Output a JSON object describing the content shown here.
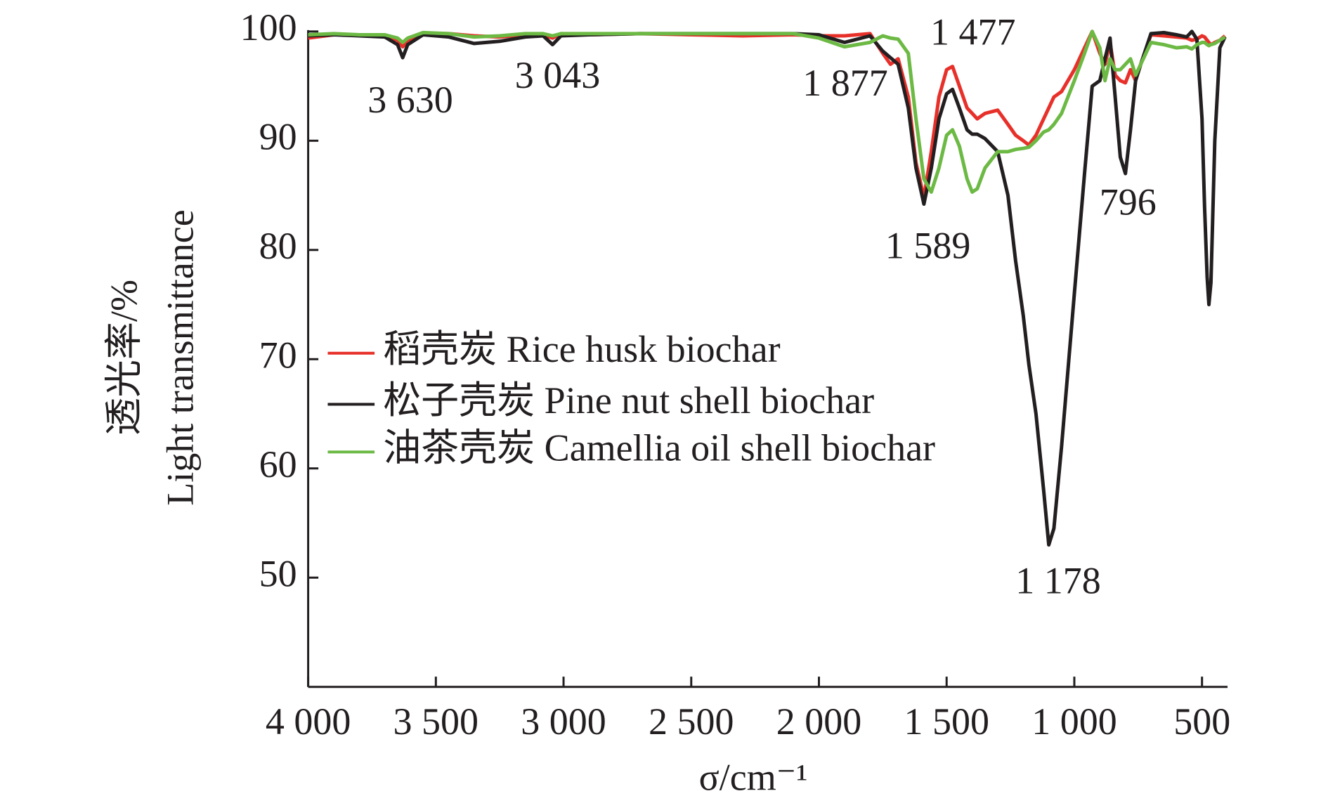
{
  "chart_data": {
    "type": "line",
    "xlabel": "σ/cm⁻¹",
    "ylabel": [
      "透光率/%",
      "Light transmittance"
    ],
    "xlim": [
      4000,
      400
    ],
    "ylim": [
      40,
      100
    ],
    "xticks": [
      {
        "value": 4000,
        "label": "4 000"
      },
      {
        "value": 3500,
        "label": "3 500"
      },
      {
        "value": 3000,
        "label": "3 000"
      },
      {
        "value": 2500,
        "label": "2 500"
      },
      {
        "value": 2000,
        "label": "2 000"
      },
      {
        "value": 1500,
        "label": "1 500"
      },
      {
        "value": 1000,
        "label": "1 000"
      },
      500
    ],
    "yticks": [
      50,
      60,
      70,
      80,
      90,
      100
    ],
    "legend": "center-left",
    "annotations": [
      "3 630",
      "3 043",
      "1 877",
      "1 477",
      "1 589",
      "796",
      "1 178"
    ],
    "x": [
      4000,
      3900,
      3800,
      3700,
      3650,
      3630,
      3610,
      3550,
      3450,
      3350,
      3250,
      3150,
      3080,
      3043,
      3010,
      2900,
      2700,
      2500,
      2300,
      2100,
      2000,
      1900,
      1800,
      1750,
      1720,
      1690,
      1650,
      1620,
      1589,
      1560,
      1530,
      1500,
      1477,
      1450,
      1420,
      1400,
      1380,
      1350,
      1300,
      1260,
      1230,
      1200,
      1178,
      1150,
      1120,
      1100,
      1080,
      1050,
      1000,
      960,
      930,
      900,
      880,
      860,
      840,
      820,
      800,
      780,
      760,
      740,
      700,
      650,
      600,
      560,
      540,
      520,
      500,
      490,
      480,
      473,
      465,
      450,
      430,
      410
    ],
    "series": [
      {
        "name": "稻壳炭 Rice husk biochar",
        "color": "#e8302a",
        "values": [
          99.4,
          99.7,
          99.7,
          99.6,
          99.2,
          98.6,
          99.2,
          99.8,
          99.8,
          99.6,
          99.5,
          99.7,
          99.7,
          99.4,
          99.8,
          99.7,
          99.8,
          99.7,
          99.6,
          99.7,
          99.6,
          99.6,
          99.8,
          98.0,
          97.0,
          97.5,
          94.0,
          88.0,
          84.8,
          89.0,
          94.0,
          96.5,
          96.8,
          95.0,
          93.0,
          92.5,
          92.0,
          92.5,
          92.8,
          91.5,
          90.5,
          90.0,
          89.6,
          90.5,
          92.0,
          93.0,
          94.0,
          94.5,
          96.5,
          98.5,
          100,
          98.0,
          97.0,
          99.0,
          96.0,
          95.5,
          95.3,
          96.5,
          95.5,
          97.0,
          99.7,
          99.6,
          99.5,
          99.4,
          99.2,
          99.3,
          99.6,
          99.5,
          99.2,
          99.0,
          98.8,
          99.0,
          99.2,
          99.6
        ]
      },
      {
        "name": "松子壳炭 Pine nut shell biochar",
        "color": "#231f20",
        "values": [
          99.6,
          99.7,
          99.6,
          99.5,
          98.8,
          97.6,
          98.8,
          99.7,
          99.5,
          98.9,
          99.1,
          99.5,
          99.6,
          98.8,
          99.6,
          99.7,
          99.8,
          99.8,
          99.8,
          99.8,
          99.7,
          99.0,
          99.6,
          98.2,
          97.6,
          97.0,
          93.0,
          87.5,
          84.2,
          87.5,
          92.0,
          94.3,
          94.7,
          93.0,
          91.0,
          90.6,
          90.6,
          90.2,
          89.0,
          85.0,
          79.0,
          74.0,
          69.5,
          65.0,
          58.0,
          53.0,
          54.5,
          62.0,
          76.0,
          87.0,
          95.0,
          95.5,
          97.5,
          99.4,
          94.0,
          88.5,
          87.0,
          91.0,
          95.5,
          97.0,
          99.8,
          99.9,
          99.7,
          99.5,
          100,
          99.3,
          92,
          84,
          77.5,
          75.0,
          77,
          90,
          98.5,
          99.5
        ]
      },
      {
        "name": "油茶壳炭 Camellia oil shell biochar",
        "color": "#6cb944",
        "values": [
          99.7,
          99.8,
          99.7,
          99.7,
          99.4,
          99.0,
          99.4,
          99.9,
          99.8,
          99.5,
          99.6,
          99.8,
          99.8,
          99.6,
          99.8,
          99.8,
          99.8,
          99.8,
          99.8,
          99.8,
          99.4,
          98.6,
          99.0,
          99.6,
          99.4,
          99.3,
          98.0,
          92.0,
          86.5,
          85.3,
          87.5,
          90.5,
          91.0,
          89.5,
          86.5,
          85.3,
          85.6,
          87.5,
          89.0,
          89.0,
          89.2,
          89.3,
          89.4,
          90.0,
          90.8,
          91.0,
          91.5,
          92.5,
          95.5,
          98.0,
          100,
          98.5,
          95.5,
          97.5,
          96.5,
          96.5,
          97.0,
          97.5,
          96.0,
          97.0,
          99.0,
          98.8,
          98.5,
          98.6,
          98.4,
          98.8,
          99.0,
          99.0,
          98.8,
          98.7,
          98.8,
          98.9,
          99.2,
          99.5
        ]
      }
    ]
  }
}
